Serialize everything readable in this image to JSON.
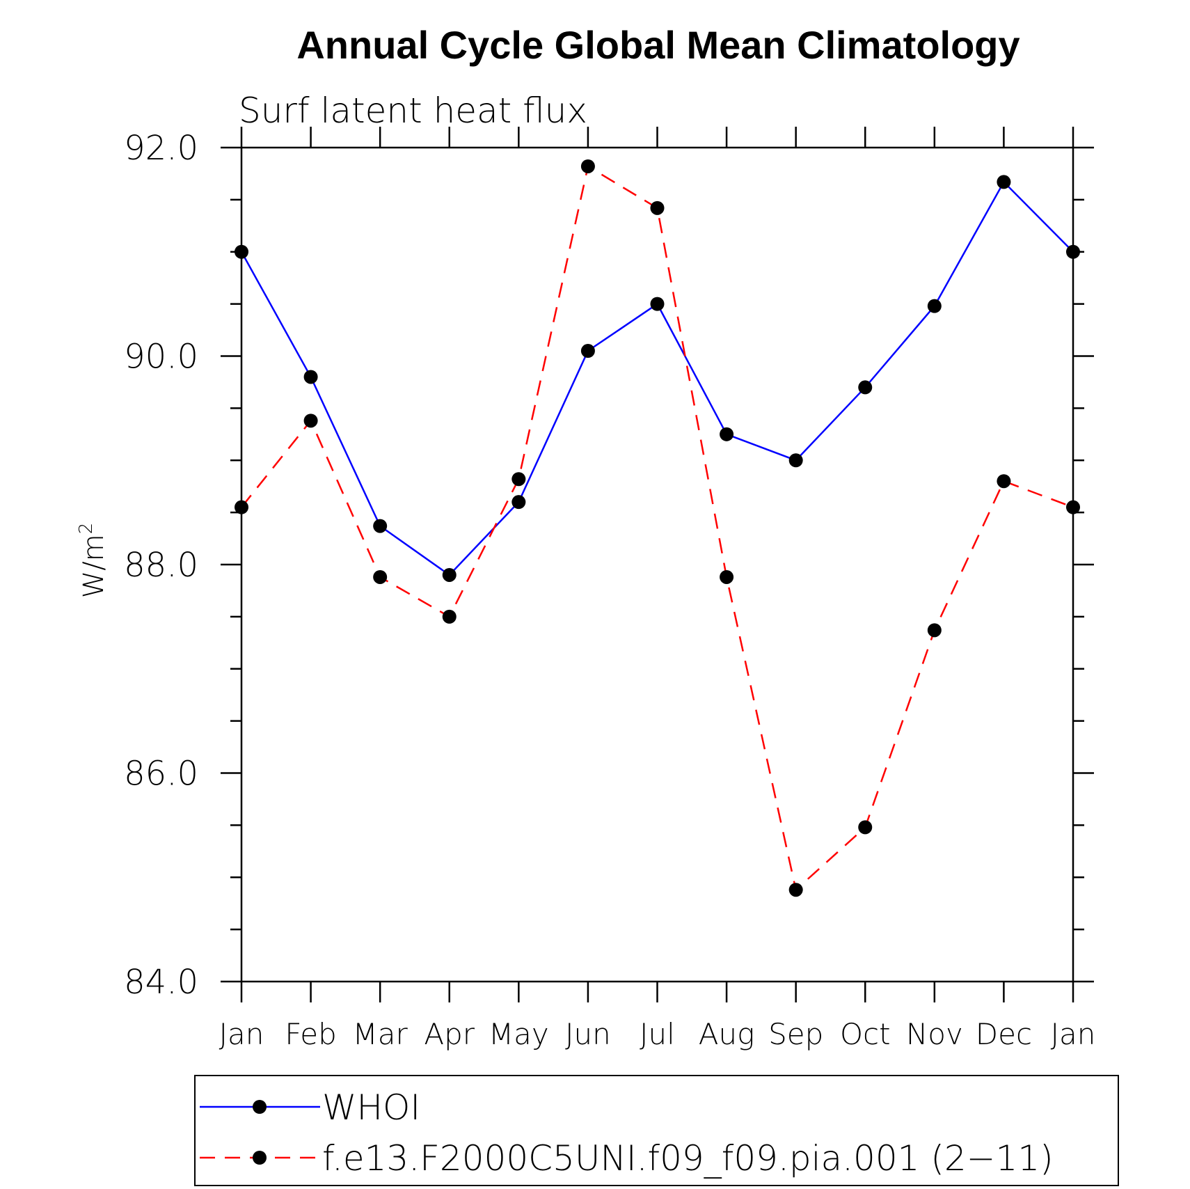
{
  "chart_data": {
    "type": "line",
    "title": "Annual Cycle Global Mean Climatology",
    "subtitle": "Surf latent heat flux",
    "ylabel": "W/m",
    "ylabel_sup": "2",
    "ylim": [
      84.0,
      92.0
    ],
    "yticks": [
      "84.0",
      "86.0",
      "88.0",
      "90.0",
      "92.0"
    ],
    "categories": [
      "Jan",
      "Feb",
      "Mar",
      "Apr",
      "May",
      "Jun",
      "Jul",
      "Aug",
      "Sep",
      "Oct",
      "Nov",
      "Dec",
      "Jan"
    ],
    "series": [
      {
        "name": "WHOI",
        "color": "#0000ff",
        "dash": "solid",
        "values": [
          91.0,
          89.8,
          88.37,
          87.9,
          88.6,
          90.05,
          90.5,
          89.25,
          89.0,
          89.7,
          90.48,
          91.67,
          91.0
        ]
      },
      {
        "name": "f.e13.F2000C5UNI.f09_f09.pia.001 (2−11)",
        "color": "#ff0000",
        "dash": "dashed",
        "values": [
          88.55,
          89.38,
          87.88,
          87.5,
          88.82,
          91.82,
          91.42,
          87.88,
          84.88,
          85.48,
          87.37,
          88.8,
          88.55
        ]
      }
    ],
    "legend_position": "bottom"
  }
}
